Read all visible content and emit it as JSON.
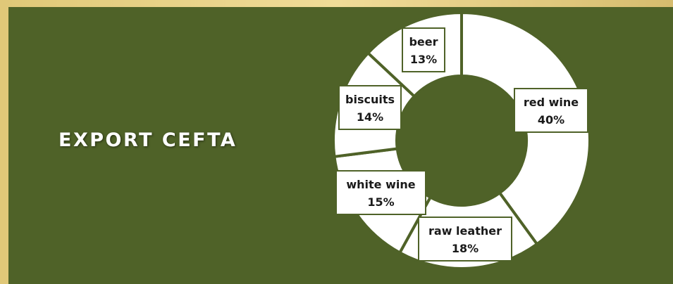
{
  "title": "EXPORT CEFTA",
  "chart_data": {
    "type": "pie",
    "variant": "donut",
    "categories": [
      "red wine",
      "raw leather",
      "white wine",
      "biscuits",
      "beer"
    ],
    "values": [
      40,
      18,
      15,
      14,
      13
    ],
    "labels": [
      "40%",
      "18%",
      "15%",
      "14%",
      "13%"
    ],
    "slice_color": "#ffffff",
    "background_color": "#4f6228"
  }
}
